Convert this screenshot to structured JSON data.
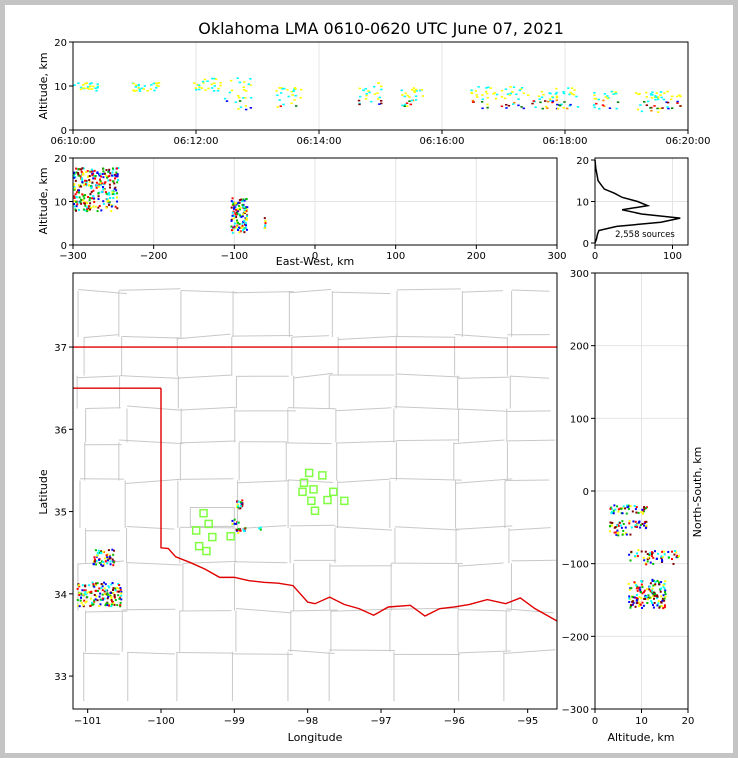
{
  "title": "Oklahoma LMA 0610-0620 UTC June 07, 2021",
  "colors": {
    "state_border": "#e00000",
    "county": "#c8c8c8",
    "station": "#80ff40",
    "grid": "#e4e4e4",
    "timeseries_colors": [
      "#00ffff",
      "#ffff00",
      "#008000",
      "#ff8000",
      "#ff0000",
      "#800000",
      "#0000ff"
    ],
    "source_colors": [
      "#0000ff",
      "#00ffff",
      "#00c000",
      "#ffff00",
      "#ff0000",
      "#800000"
    ]
  },
  "chart_data": [
    {
      "id": "time-height",
      "type": "scatter",
      "ylabel": "Altitude, km",
      "ylim": [
        0,
        20
      ],
      "yticks": [
        "0",
        "10",
        "20"
      ],
      "xlim": [
        "06:10:00",
        "06:20:00"
      ],
      "xticks": [
        "06:10:00",
        "06:12:00",
        "06:14:00",
        "06:16:00",
        "06:18:00",
        "06:20:00"
      ],
      "grid": true,
      "clusters": [
        {
          "t": "06:10:12",
          "z": [
            9,
            11
          ]
        },
        {
          "t": "06:11:10",
          "z": [
            9,
            11
          ]
        },
        {
          "t": "06:12:10",
          "z": [
            9,
            12
          ]
        },
        {
          "t": "06:12:40",
          "z": [
            4,
            12
          ]
        },
        {
          "t": "06:13:30",
          "z": [
            5,
            10
          ]
        },
        {
          "t": "06:14:50",
          "z": [
            6,
            11
          ]
        },
        {
          "t": "06:15:30",
          "z": [
            5,
            10
          ]
        },
        {
          "t": "06:16:40",
          "z": [
            5,
            10
          ]
        },
        {
          "t": "06:17:10",
          "z": [
            5,
            10
          ]
        },
        {
          "t": "06:17:40",
          "z": [
            5,
            9
          ]
        },
        {
          "t": "06:18:00",
          "z": [
            5,
            10
          ]
        },
        {
          "t": "06:18:40",
          "z": [
            5,
            9
          ]
        },
        {
          "t": "06:19:20",
          "z": [
            4,
            9
          ]
        },
        {
          "t": "06:19:40",
          "z": [
            5,
            9
          ]
        }
      ]
    },
    {
      "id": "ew-height",
      "type": "scatter",
      "ylabel": "Altitude, km",
      "xlabel": "East-West, km",
      "xlim": [
        -300,
        300
      ],
      "ylim": [
        0,
        20
      ],
      "xticks": [
        "−300",
        "−200",
        "−100",
        "0",
        "100",
        "200",
        "300"
      ],
      "yticks": [
        "0",
        "10",
        "20"
      ],
      "grid": true,
      "clusters": [
        {
          "x": [
            -300,
            -245
          ],
          "z": [
            8,
            18
          ]
        },
        {
          "x": [
            -105,
            -85
          ],
          "z": [
            3,
            11
          ]
        },
        {
          "x": [
            -64,
            -62
          ],
          "z": [
            4,
            7
          ]
        }
      ]
    },
    {
      "id": "altitude-histogram",
      "type": "line",
      "xlim": [
        0,
        120
      ],
      "ylim": [
        0,
        20
      ],
      "xticks": [
        "0",
        "100"
      ],
      "yticks": [
        "0",
        "10",
        "20"
      ],
      "annotation": "2,558 sources",
      "profile": [
        {
          "z": 0,
          "n": 0
        },
        {
          "z": 1,
          "n": 2
        },
        {
          "z": 2,
          "n": 3
        },
        {
          "z": 3,
          "n": 5
        },
        {
          "z": 4,
          "n": 28
        },
        {
          "z": 5,
          "n": 85
        },
        {
          "z": 6,
          "n": 110
        },
        {
          "z": 7,
          "n": 60
        },
        {
          "z": 8,
          "n": 35
        },
        {
          "z": 9,
          "n": 68
        },
        {
          "z": 10,
          "n": 55
        },
        {
          "z": 11,
          "n": 35
        },
        {
          "z": 12,
          "n": 25
        },
        {
          "z": 13,
          "n": 12
        },
        {
          "z": 14,
          "n": 8
        },
        {
          "z": 15,
          "n": 4
        },
        {
          "z": 16,
          "n": 3
        },
        {
          "z": 17,
          "n": 2
        },
        {
          "z": 18,
          "n": 1
        },
        {
          "z": 20,
          "n": 0
        }
      ]
    },
    {
      "id": "plan-view",
      "type": "scatter",
      "xlabel": "Longitude",
      "ylabel": "Latitude",
      "xlim": [
        -101.2,
        -94.6
      ],
      "ylim": [
        32.6,
        37.9
      ],
      "xticks": [
        "−101",
        "−100",
        "−99",
        "−98",
        "−97",
        "−96",
        "−95"
      ],
      "yticks": [
        "33",
        "34",
        "35",
        "36",
        "37"
      ],
      "clusters": [
        {
          "lon": [
            -101.15,
            -100.55
          ],
          "lat": [
            33.85,
            34.15
          ]
        },
        {
          "lon": [
            -100.95,
            -100.65
          ],
          "lat": [
            34.35,
            34.55
          ]
        },
        {
          "lon": [
            -98.98,
            -98.9
          ],
          "lat": [
            35.05,
            35.15
          ]
        },
        {
          "lon": [
            -99.05,
            -98.95
          ],
          "lat": [
            34.85,
            34.92
          ]
        },
        {
          "lon": [
            -99.0,
            -98.85
          ],
          "lat": [
            34.75,
            34.82
          ]
        },
        {
          "lon": [
            -98.7,
            -98.62
          ],
          "lat": [
            34.79,
            34.82
          ]
        }
      ],
      "stations": [
        {
          "lon": -97.98,
          "lat": 35.47
        },
        {
          "lon": -97.8,
          "lat": 35.44
        },
        {
          "lon": -98.05,
          "lat": 35.35
        },
        {
          "lon": -97.92,
          "lat": 35.27
        },
        {
          "lon": -98.07,
          "lat": 35.24
        },
        {
          "lon": -97.65,
          "lat": 35.24
        },
        {
          "lon": -97.73,
          "lat": 35.14
        },
        {
          "lon": -97.5,
          "lat": 35.13
        },
        {
          "lon": -97.95,
          "lat": 35.13
        },
        {
          "lon": -97.9,
          "lat": 35.01
        },
        {
          "lon": -99.42,
          "lat": 34.98
        },
        {
          "lon": -99.35,
          "lat": 34.85
        },
        {
          "lon": -99.52,
          "lat": 34.77
        },
        {
          "lon": -99.3,
          "lat": 34.69
        },
        {
          "lon": -99.05,
          "lat": 34.7
        },
        {
          "lon": -99.48,
          "lat": 34.58
        },
        {
          "lon": -99.38,
          "lat": 34.52
        }
      ]
    },
    {
      "id": "height-ns",
      "type": "scatter",
      "xlabel": "Altitude, km",
      "ylabel": "North-South, km",
      "xlim": [
        0,
        20
      ],
      "ylim": [
        -300,
        300
      ],
      "xticks": [
        "0",
        "10",
        "20"
      ],
      "yticks": [
        "−300",
        "−200",
        "−100",
        "0",
        "100",
        "200",
        "300"
      ],
      "grid": true,
      "clusters": [
        {
          "z": [
            3,
            11
          ],
          "y": [
            -30,
            -18
          ]
        },
        {
          "z": [
            3,
            11
          ],
          "y": [
            -50,
            -40
          ]
        },
        {
          "z": [
            3,
            8
          ],
          "y": [
            -60,
            -53
          ]
        },
        {
          "z": [
            7,
            18
          ],
          "y": [
            -100,
            -80
          ]
        },
        {
          "z": [
            7,
            15
          ],
          "y": [
            -160,
            -120
          ]
        }
      ]
    }
  ]
}
